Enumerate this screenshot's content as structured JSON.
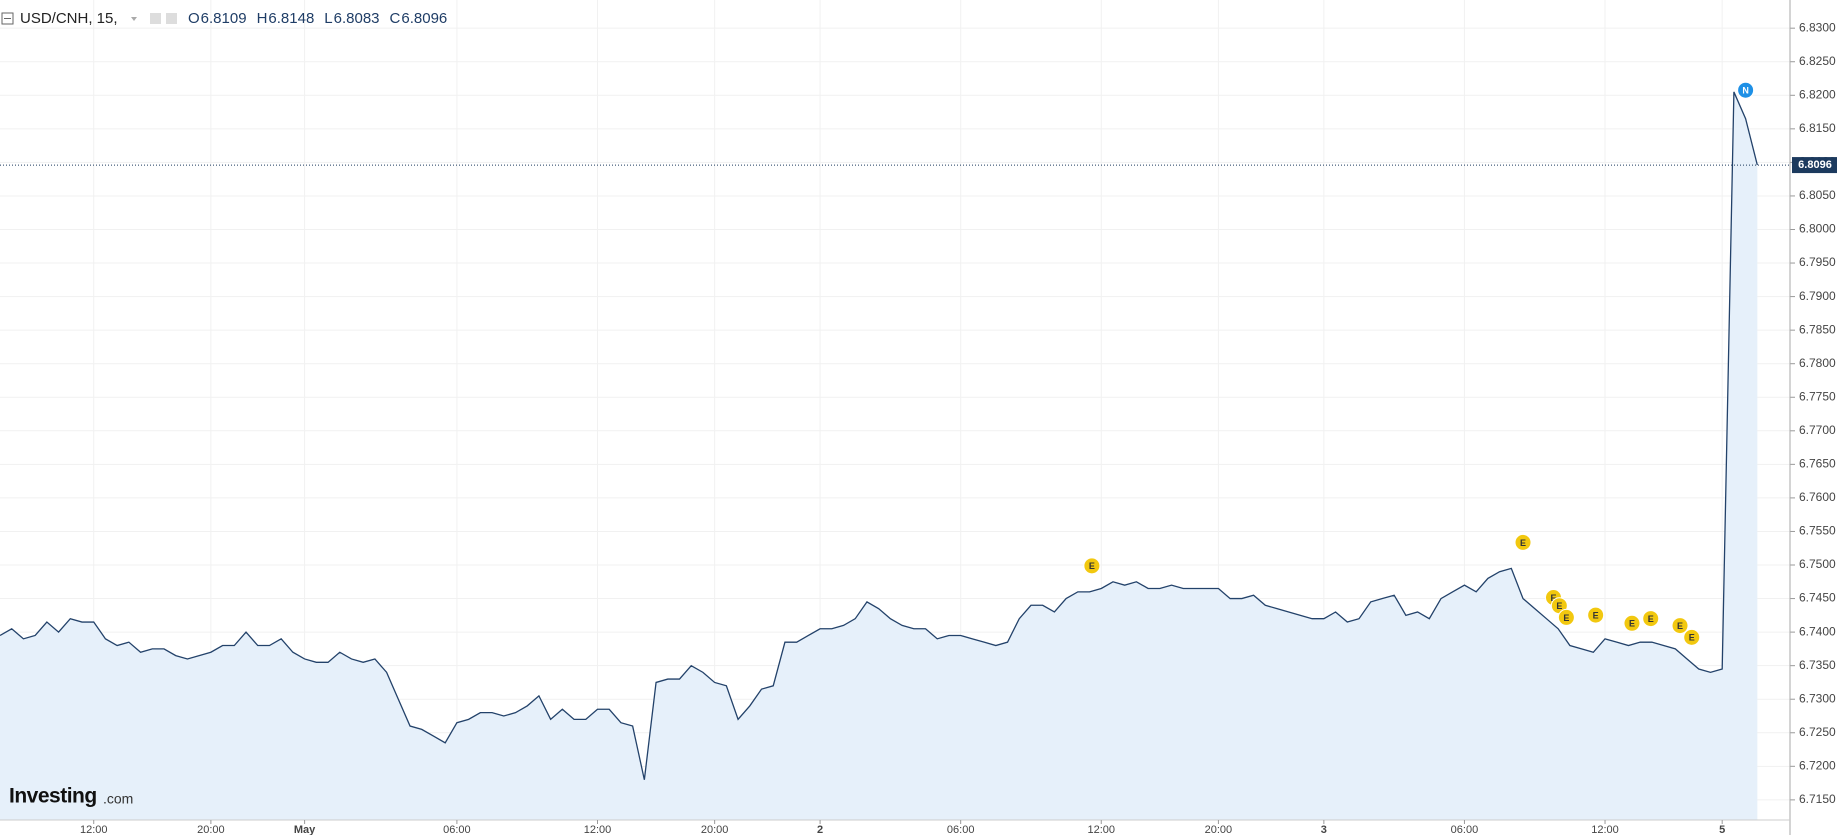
{
  "chart_data": {
    "type": "line",
    "symbol": "USD/CNH, 15,",
    "ohlc": [
      {
        "label": "O",
        "value": 6.8109
      },
      {
        "label": "H",
        "value": 6.8148
      },
      {
        "label": "L",
        "value": 6.8083
      },
      {
        "label": "C",
        "value": 6.8096
      }
    ],
    "brand": "Investing",
    "brand_suffix": ".com",
    "event_markers": [
      "E",
      "E",
      "E",
      "E",
      "E",
      "E",
      "E",
      "E",
      "E",
      "E",
      "N"
    ],
    "categories": [
      null,
      null,
      null,
      null,
      null,
      null,
      null,
      null,
      "12:00",
      null,
      null,
      null,
      null,
      null,
      null,
      null,
      null,
      null,
      "20:00",
      null,
      null,
      null,
      null,
      null,
      null,
      null,
      "May",
      null,
      null,
      null,
      null,
      null,
      null,
      null,
      null,
      null,
      null,
      null,
      null,
      "06:00",
      null,
      null,
      null,
      null,
      null,
      null,
      null,
      null,
      null,
      null,
      null,
      "12:00",
      null,
      null,
      null,
      null,
      null,
      null,
      null,
      null,
      null,
      "20:00",
      null,
      null,
      null,
      null,
      null,
      null,
      null,
      null,
      "2",
      null,
      null,
      null,
      null,
      null,
      null,
      null,
      null,
      null,
      null,
      null,
      "06:00",
      null,
      null,
      null,
      null,
      null,
      null,
      null,
      null,
      null,
      null,
      null,
      "12:00",
      null,
      null,
      null,
      null,
      null,
      null,
      null,
      null,
      null,
      "20:00",
      null,
      null,
      null,
      null,
      null,
      null,
      null,
      null,
      "3",
      null,
      null,
      null,
      null,
      null,
      null,
      null,
      null,
      null,
      null,
      null,
      "06:00",
      null,
      null,
      null,
      null,
      null,
      null,
      null,
      null,
      null,
      null,
      null,
      "12:00",
      null,
      null,
      null,
      null,
      null,
      null,
      null,
      null,
      null,
      "5",
      null,
      null,
      null
    ],
    "series": [
      {
        "name": "USD/CNH",
        "color": "#23426a",
        "fill": "#e6f0fa",
        "values": [
          6.7395,
          6.7405,
          6.739,
          6.7395,
          6.7415,
          6.74,
          6.742,
          6.7415,
          6.7415,
          6.739,
          6.738,
          6.7385,
          6.737,
          6.7375,
          6.7375,
          6.7365,
          6.736,
          6.7365,
          6.737,
          6.738,
          6.738,
          6.74,
          6.738,
          6.738,
          6.739,
          6.737,
          6.736,
          6.7355,
          6.7355,
          6.737,
          6.736,
          6.7355,
          6.736,
          6.734,
          6.73,
          6.726,
          6.7255,
          6.7245,
          6.7235,
          6.7265,
          6.727,
          6.728,
          6.728,
          6.7275,
          6.728,
          6.729,
          6.7305,
          6.727,
          6.7285,
          6.727,
          6.727,
          6.7285,
          6.7285,
          6.7265,
          6.726,
          6.718,
          6.7325,
          6.733,
          6.733,
          6.735,
          6.734,
          6.7325,
          6.732,
          6.727,
          6.729,
          6.7315,
          6.732,
          6.7385,
          6.7385,
          6.7395,
          6.7405,
          6.7405,
          6.741,
          6.742,
          6.7445,
          6.7435,
          6.742,
          6.741,
          6.7405,
          6.7405,
          6.739,
          6.7395,
          6.7395,
          6.739,
          6.7385,
          6.738,
          6.7385,
          6.742,
          6.744,
          6.744,
          6.743,
          6.745,
          6.746,
          6.746,
          6.7465,
          6.7475,
          6.747,
          6.7475,
          6.7465,
          6.7465,
          6.747,
          6.7465,
          6.7465,
          6.7465,
          6.7465,
          6.745,
          6.745,
          6.7455,
          6.744,
          6.7435,
          6.743,
          6.7425,
          6.742,
          6.742,
          6.743,
          6.7415,
          6.742,
          6.7445,
          6.745,
          6.7455,
          6.7425,
          6.743,
          6.742,
          6.745,
          6.746,
          6.747,
          6.746,
          6.748,
          6.749,
          6.7495,
          6.745,
          6.7435,
          6.742,
          6.7405,
          6.738,
          6.7375,
          6.737,
          6.739,
          6.7385,
          6.738,
          6.7385,
          6.7385,
          6.738,
          6.7375,
          6.736,
          6.7345,
          6.734,
          6.7345,
          6.8205,
          6.8165,
          6.8096
        ]
      }
    ],
    "ylim": [
      6.712,
      6.8342
    ],
    "yticks": [
      {
        "value": 6.715,
        "label": "6.7150"
      },
      {
        "value": 6.72,
        "label": "6.7200"
      },
      {
        "value": 6.725,
        "label": "6.7250"
      },
      {
        "value": 6.73,
        "label": "6.7300"
      },
      {
        "value": 6.735,
        "label": "6.7350"
      },
      {
        "value": 6.74,
        "label": "6.7400"
      },
      {
        "value": 6.745,
        "label": "6.7450"
      },
      {
        "value": 6.75,
        "label": "6.7500"
      },
      {
        "value": 6.755,
        "label": "6.7550"
      },
      {
        "value": 6.76,
        "label": "6.7600"
      },
      {
        "value": 6.765,
        "label": "6.7650"
      },
      {
        "value": 6.77,
        "label": "6.7700"
      },
      {
        "value": 6.775,
        "label": "6.7750"
      },
      {
        "value": 6.78,
        "label": "6.7800"
      },
      {
        "value": 6.785,
        "label": "6.7850"
      },
      {
        "value": 6.79,
        "label": "6.7900"
      },
      {
        "value": 6.795,
        "label": "6.7950"
      },
      {
        "value": 6.8,
        "label": "6.8000"
      },
      {
        "value": 6.805,
        "label": "6.8050"
      },
      {
        "value": 6.81,
        "label": "6.8100"
      },
      {
        "value": 6.815,
        "label": "6.8150"
      },
      {
        "value": 6.82,
        "label": "6.8200"
      },
      {
        "value": 6.825,
        "label": "6.8250"
      },
      {
        "value": 6.83,
        "label": "6.8300"
      }
    ],
    "grid": true
  }
}
